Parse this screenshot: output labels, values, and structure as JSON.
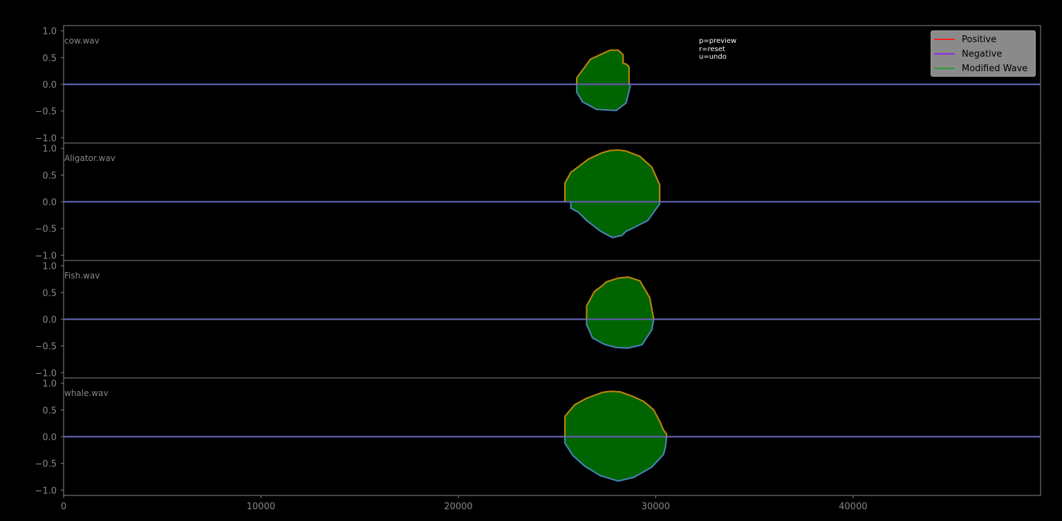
{
  "chart_data": {
    "type": "line",
    "layout": "stacked-subplots",
    "x_range": [
      0,
      49500
    ],
    "x_ticks": [
      0,
      10000,
      20000,
      30000,
      40000
    ],
    "x_tick_labels": [
      "0",
      "10000",
      "20000",
      "30000",
      "40000"
    ],
    "y_range": [
      -1.1,
      1.1
    ],
    "y_ticks": [
      1.0,
      0.5,
      0.0,
      -0.5,
      -1.0
    ],
    "y_tick_labels": [
      "1.0",
      "0.5",
      "0.0",
      "−0.5",
      "−1.0"
    ],
    "legend": {
      "placement": "top-right",
      "entries": [
        {
          "label": "Positive",
          "color": "#ff2020"
        },
        {
          "label": "Negative",
          "color": "#8a2be2"
        },
        {
          "label": "Modified Wave",
          "color": "#2ca02c"
        }
      ]
    },
    "colors": {
      "background": "#000000",
      "axis": "#888888",
      "fill": "#006400",
      "positive_envelope": "#b8860b",
      "negative_envelope": "#4682b4",
      "baseline": "#5a5aa0"
    },
    "subplots": [
      {
        "label": "cow.wav",
        "positive": [
          [
            26000,
            0.0
          ],
          [
            26000,
            0.12
          ],
          [
            26700,
            0.47
          ],
          [
            27700,
            0.64
          ],
          [
            28100,
            0.64
          ],
          [
            28350,
            0.55
          ],
          [
            28350,
            0.39
          ],
          [
            28500,
            0.38
          ],
          [
            28650,
            0.33
          ],
          [
            28650,
            0.0
          ]
        ],
        "negative": [
          [
            26000,
            0.0
          ],
          [
            26000,
            -0.15
          ],
          [
            26300,
            -0.33
          ],
          [
            27000,
            -0.47
          ],
          [
            28000,
            -0.49
          ],
          [
            28500,
            -0.35
          ],
          [
            28700,
            -0.05
          ],
          [
            28700,
            0.0
          ]
        ]
      },
      {
        "label": "Aligator.wav",
        "positive": [
          [
            25400,
            0.0
          ],
          [
            25400,
            0.35
          ],
          [
            25700,
            0.55
          ],
          [
            26600,
            0.8
          ],
          [
            27300,
            0.92
          ],
          [
            27700,
            0.96
          ],
          [
            28100,
            0.97
          ],
          [
            28500,
            0.95
          ],
          [
            29200,
            0.85
          ],
          [
            29800,
            0.65
          ],
          [
            30200,
            0.32
          ],
          [
            30200,
            0.0
          ]
        ],
        "negative": [
          [
            25700,
            0.0
          ],
          [
            25700,
            -0.12
          ],
          [
            26100,
            -0.2
          ],
          [
            26500,
            -0.35
          ],
          [
            27200,
            -0.55
          ],
          [
            27800,
            -0.67
          ],
          [
            28300,
            -0.63
          ],
          [
            28500,
            -0.55
          ],
          [
            28700,
            -0.52
          ],
          [
            29600,
            -0.35
          ],
          [
            30200,
            -0.04
          ],
          [
            30200,
            0.0
          ]
        ]
      },
      {
        "label": "Fish.wav",
        "positive": [
          [
            26500,
            0.0
          ],
          [
            26500,
            0.25
          ],
          [
            26900,
            0.52
          ],
          [
            27300,
            0.63
          ],
          [
            27500,
            0.7
          ],
          [
            28100,
            0.77
          ],
          [
            28600,
            0.79
          ],
          [
            29200,
            0.72
          ],
          [
            29700,
            0.4
          ],
          [
            29900,
            0.0
          ]
        ],
        "negative": [
          [
            26500,
            0.0
          ],
          [
            26500,
            -0.1
          ],
          [
            26800,
            -0.35
          ],
          [
            27400,
            -0.47
          ],
          [
            28000,
            -0.53
          ],
          [
            28600,
            -0.54
          ],
          [
            29300,
            -0.48
          ],
          [
            29800,
            -0.2
          ],
          [
            29900,
            0.0
          ]
        ]
      },
      {
        "label": "whale.wav",
        "positive": [
          [
            25400,
            0.0
          ],
          [
            25400,
            0.38
          ],
          [
            25900,
            0.6
          ],
          [
            26500,
            0.72
          ],
          [
            27300,
            0.83
          ],
          [
            27700,
            0.85
          ],
          [
            28200,
            0.84
          ],
          [
            28800,
            0.76
          ],
          [
            29400,
            0.66
          ],
          [
            29900,
            0.5
          ],
          [
            30200,
            0.29
          ],
          [
            30400,
            0.12
          ],
          [
            30550,
            0.05
          ],
          [
            30550,
            0.0
          ]
        ],
        "negative": [
          [
            25400,
            0.0
          ],
          [
            25400,
            -0.12
          ],
          [
            25800,
            -0.35
          ],
          [
            26400,
            -0.55
          ],
          [
            27200,
            -0.73
          ],
          [
            28100,
            -0.83
          ],
          [
            28900,
            -0.76
          ],
          [
            29800,
            -0.57
          ],
          [
            30400,
            -0.33
          ],
          [
            30500,
            -0.18
          ],
          [
            30550,
            0.0
          ]
        ]
      }
    ]
  },
  "hint": {
    "preview": "p=preview",
    "reset": "r=reset",
    "undo": "u=undo"
  }
}
